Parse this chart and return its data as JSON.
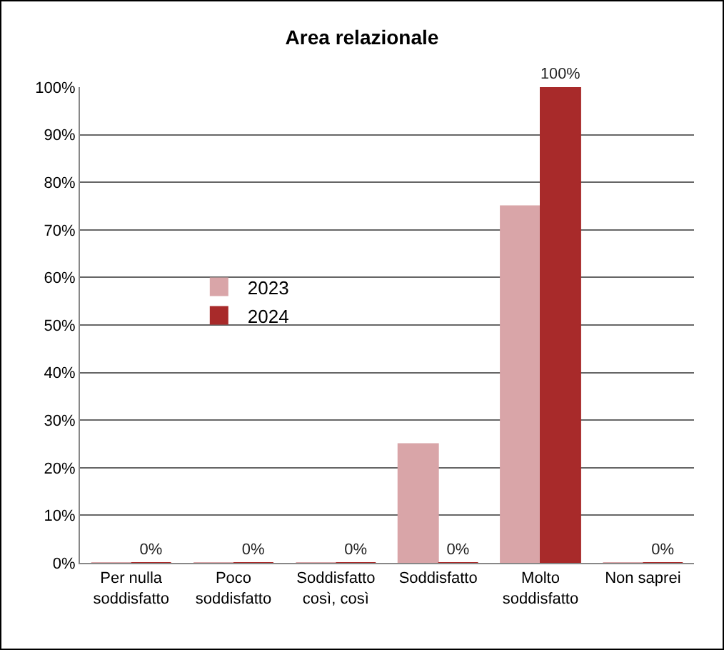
{
  "chart_data": {
    "type": "bar",
    "title": "Area relazionale",
    "categories": [
      "Per nulla\nsoddisfatto",
      "Poco\nsoddisfatto",
      "Soddisfatto\ncosì, così",
      "Soddisfatto",
      "Molto\nsoddisfatto",
      "Non saprei"
    ],
    "series": [
      {
        "name": "2023",
        "color": "#d9a5a8",
        "values": [
          0,
          0,
          0,
          25,
          75,
          0
        ]
      },
      {
        "name": "2024",
        "color": "#a82a2a",
        "values": [
          0,
          0,
          0,
          0,
          100,
          0
        ],
        "value_labels": [
          "0%",
          "0%",
          "0%",
          "0%",
          "100%",
          "0%"
        ]
      }
    ],
    "ylim": [
      0,
      100
    ],
    "yticks": [
      {
        "value": 0,
        "label": "0%"
      },
      {
        "value": 10,
        "label": "10%"
      },
      {
        "value": 20,
        "label": "20%"
      },
      {
        "value": 30,
        "label": "30%"
      },
      {
        "value": 40,
        "label": "40%"
      },
      {
        "value": 50,
        "label": "50%"
      },
      {
        "value": 60,
        "label": "60%"
      },
      {
        "value": 70,
        "label": "70%"
      },
      {
        "value": 80,
        "label": "80%"
      },
      {
        "value": 90,
        "label": "90%"
      },
      {
        "value": 100,
        "label": "100%"
      }
    ],
    "grid": "y",
    "legend": "left"
  }
}
